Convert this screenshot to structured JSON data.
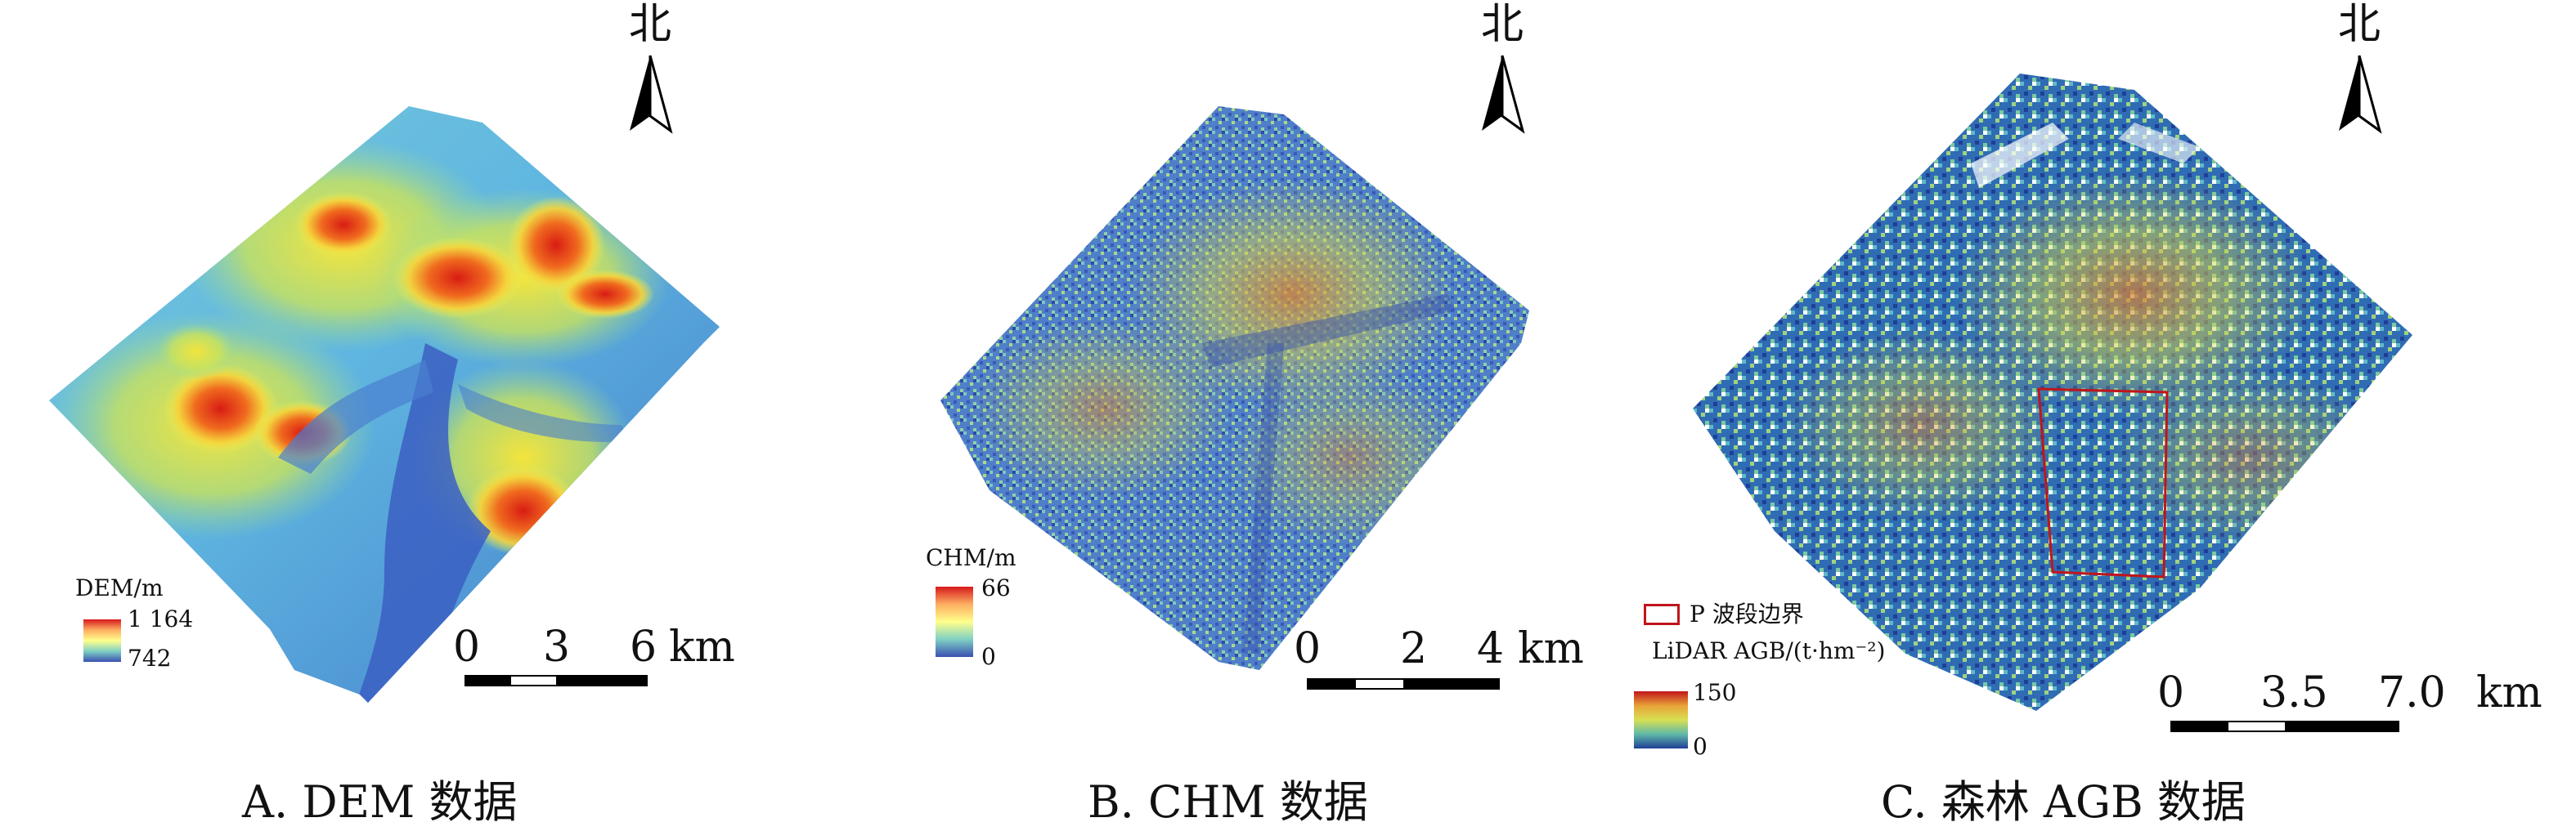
{
  "north_label": "北",
  "panels": [
    {
      "caption": "A. DEM 数据",
      "legend": {
        "title": "DEM/m",
        "max": "1 164",
        "min": "742"
      },
      "scale": {
        "t0": "0",
        "t1": "3",
        "t2": "6",
        "unit": "km"
      }
    },
    {
      "caption": "B. CHM 数据",
      "legend": {
        "title": "CHM/m",
        "max": "66",
        "min": "0"
      },
      "scale": {
        "t0": "0",
        "t1": "2",
        "t2": "4",
        "unit": "km"
      }
    },
    {
      "caption": "C. 森林 AGB 数据",
      "legend": {
        "title": "LiDAR AGB/(t·hm⁻²)",
        "max": "150",
        "min": "0",
        "boundary_label": "P 波段边界"
      },
      "scale": {
        "t0": "0",
        "t1": "3.5",
        "t2": "7.0",
        "unit": "km"
      }
    }
  ],
  "colors": {
    "ramp": [
      "#d7191c",
      "#fdae61",
      "#ffff8c",
      "#abdda4",
      "#2b83ba",
      "#3a4fb0"
    ],
    "boundary": "#c0151b"
  }
}
